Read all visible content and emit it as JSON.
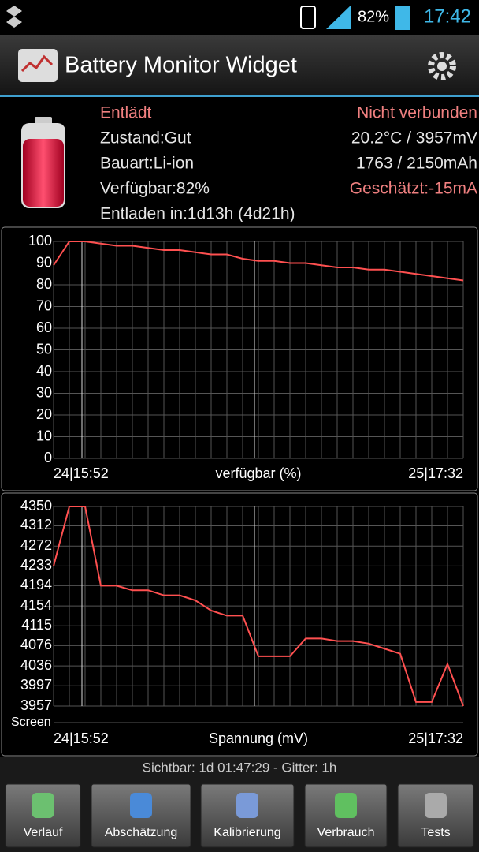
{
  "status_bar": {
    "battery": "82%",
    "time": "17:42"
  },
  "app_bar": {
    "title": "Battery Monitor Widget"
  },
  "info": {
    "left": [
      "Entlädt",
      "Zustand:Gut",
      "Bauart:Li-ion",
      "Verfügbar:82%",
      "Entladen in:1d13h (4d21h)"
    ],
    "right": [
      "Nicht verbunden",
      "20.2°C / 3957mV",
      "1763 / 2150mAh",
      "Geschätzt:-15mA"
    ]
  },
  "chart_data": [
    {
      "type": "line",
      "xlabel": "verfügbar (%)",
      "categories": [
        "24|15:52",
        null,
        null,
        null,
        null,
        null,
        null,
        null,
        null,
        null,
        null,
        null,
        null,
        null,
        null,
        null,
        null,
        null,
        null,
        null,
        null,
        null,
        null,
        null,
        null,
        null,
        "25|17:32"
      ],
      "values": [
        89,
        100,
        100,
        99,
        98,
        98,
        97,
        96,
        96,
        95,
        94,
        94,
        92,
        91,
        91,
        90,
        90,
        89,
        88,
        88,
        87,
        87,
        86,
        85,
        84,
        83,
        82
      ],
      "color": "#ff5050",
      "ylim": [
        0,
        100
      ],
      "yticks": [
        0,
        10,
        20,
        30,
        40,
        50,
        60,
        70,
        80,
        90,
        100
      ],
      "grid": true
    },
    {
      "type": "line",
      "xlabel": "Spannung (mV)",
      "screen_label": "Screen",
      "categories": [
        "24|15:52",
        null,
        null,
        null,
        null,
        null,
        null,
        null,
        null,
        null,
        null,
        null,
        null,
        null,
        null,
        null,
        null,
        null,
        null,
        null,
        null,
        null,
        null,
        null,
        null,
        null,
        "25|17:32"
      ],
      "values": [
        4233,
        4350,
        4350,
        4194,
        4194,
        4185,
        4185,
        4175,
        4175,
        4165,
        4145,
        4135,
        4135,
        4055,
        4055,
        4055,
        4090,
        4090,
        4085,
        4085,
        4080,
        4070,
        4060,
        3965,
        3965,
        4040,
        3957
      ],
      "color": "#ff5050",
      "ylim": [
        3957,
        4350
      ],
      "yticks": [
        3957,
        3997,
        4036,
        4076,
        4115,
        4154,
        4194,
        4233,
        4272,
        4312,
        4350
      ],
      "grid": true
    }
  ],
  "footer": "Sichtbar: 1d 01:47:29 - Gitter: 1h",
  "tabs": [
    "Verlauf",
    "Abschätzung",
    "Kalibrierung",
    "Verbrauch",
    "Tests"
  ]
}
